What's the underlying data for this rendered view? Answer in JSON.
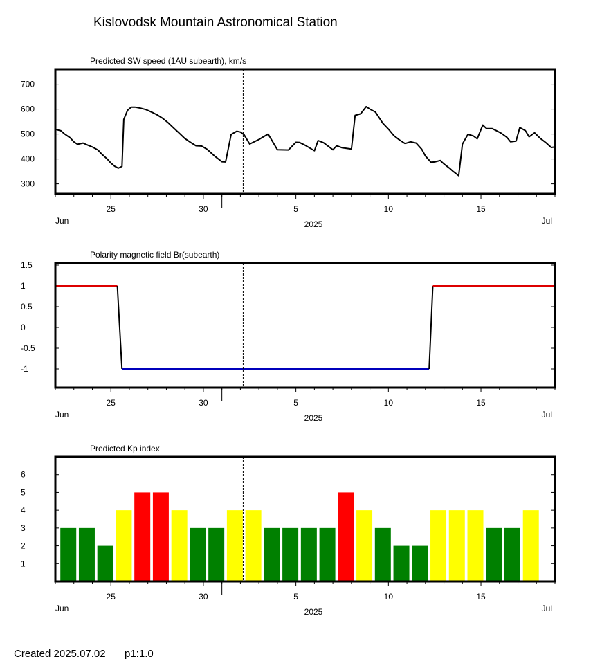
{
  "page": {
    "title": "Kislovodsk Mountain Astronomical Station",
    "footer_created": "Created  2025.07.02",
    "footer_page": "p1:1.0"
  },
  "chart_data": [
    {
      "type": "line",
      "title": "Predicted SW speed (1AU subearth), km/s",
      "x_unit": "day of 2025 (Jun 22 = 22, Jul 1 = 31)",
      "xlim": [
        22,
        49
      ],
      "ylim": [
        260,
        760
      ],
      "yticks": [
        300,
        400,
        500,
        600,
        700
      ],
      "ytick_labels": [
        "300",
        "400",
        "500",
        "600",
        "700"
      ],
      "xticks": [
        25,
        30,
        35,
        40,
        45
      ],
      "xtick_labels": [
        "25",
        "30",
        "5",
        "10",
        "15"
      ],
      "month_labels": [
        "Jun",
        "Jul"
      ],
      "year_label": "2025",
      "current_time": 32.15,
      "month_boundary": 31,
      "color": "#000000",
      "series": [
        {
          "x": [
            22.0,
            22.3,
            22.5,
            22.8,
            23.0,
            23.2,
            23.5,
            23.7,
            24.0,
            24.3,
            24.5,
            24.8,
            25.0,
            25.2,
            25.4,
            25.6,
            25.7,
            25.9,
            26.1,
            26.3,
            26.6,
            26.9,
            27.2,
            27.5,
            27.8,
            28.1,
            28.4,
            28.7,
            29.0,
            29.3,
            29.6,
            29.9,
            30.2,
            30.6,
            31.0,
            31.2,
            31.5,
            31.8,
            32.0,
            32.2,
            32.5,
            33.0,
            33.5,
            34.0,
            34.6,
            35.0,
            35.2,
            35.5,
            36.0,
            36.2,
            36.5,
            37.0,
            37.2,
            37.5,
            38.0,
            38.2,
            38.5,
            38.8,
            39.0,
            39.3,
            39.7,
            40.0,
            40.3,
            40.6,
            40.9,
            41.2,
            41.5,
            41.8,
            42.0,
            42.3,
            42.5,
            42.8,
            43.0,
            43.3,
            43.5,
            43.8,
            44.0,
            44.3,
            44.6,
            44.8,
            45.1,
            45.3,
            45.6,
            45.9,
            46.1,
            46.4,
            46.6,
            46.9,
            47.1,
            47.4,
            47.6,
            47.9,
            48.2,
            48.5,
            48.8,
            49.0
          ],
          "y": [
            519,
            513,
            500,
            485,
            469,
            459,
            464,
            457,
            448,
            436,
            420,
            400,
            384,
            371,
            363,
            370,
            559,
            595,
            608,
            608,
            604,
            598,
            588,
            577,
            563,
            545,
            524,
            503,
            482,
            467,
            453,
            452,
            439,
            412,
            389,
            388,
            498,
            511,
            508,
            497,
            460,
            478,
            500,
            437,
            436,
            467,
            466,
            455,
            433,
            474,
            465,
            437,
            453,
            445,
            440,
            575,
            581,
            610,
            600,
            588,
            543,
            520,
            493,
            476,
            462,
            469,
            464,
            439,
            412,
            387,
            388,
            394,
            380,
            363,
            350,
            333,
            460,
            499,
            492,
            481,
            536,
            522,
            522,
            511,
            503,
            487,
            469,
            472,
            526,
            514,
            489,
            505,
            483,
            466,
            446,
            448
          ]
        }
      ]
    },
    {
      "type": "line",
      "title": "Polarity magnetic field  Br(subearth)",
      "x_unit": "day of 2025 (Jun 22 = 22, Jul 1 = 31)",
      "xlim": [
        22,
        49
      ],
      "ylim": [
        -1.45,
        1.55
      ],
      "yticks": [
        -1,
        -0.5,
        0,
        0.5,
        1,
        1.5
      ],
      "ytick_labels": [
        "-1",
        "-0.5",
        "0",
        "0.5",
        "1",
        "1.5"
      ],
      "xticks": [
        25,
        30,
        35,
        40,
        45
      ],
      "xtick_labels": [
        "25",
        "30",
        "5",
        "10",
        "15"
      ],
      "month_labels": [
        "Jun",
        "Jul"
      ],
      "year_label": "2025",
      "current_time": 32.15,
      "month_boundary": 31,
      "positive_color": "#dd0000",
      "negative_color": "#0000bb",
      "transition_color": "#000000",
      "series": [
        {
          "x": [
            22.0,
            25.35,
            25.6,
            42.2,
            42.4,
            49.0
          ],
          "y": [
            1,
            1,
            -1,
            -1,
            1,
            1
          ]
        }
      ]
    },
    {
      "type": "bar",
      "title": "Predicted Kp index",
      "x_unit": "day of 2025 (Jun 22 = 22, Jul 1 = 31)",
      "xlim": [
        22,
        49
      ],
      "ylim": [
        0,
        7
      ],
      "yticks": [
        1,
        2,
        3,
        4,
        5,
        6
      ],
      "ytick_labels": [
        "1",
        "2",
        "3",
        "4",
        "5",
        "6"
      ],
      "xticks": [
        25,
        30,
        35,
        40,
        45
      ],
      "xtick_labels": [
        "25",
        "30",
        "5",
        "10",
        "15"
      ],
      "month_labels": [
        "Jun",
        "Jul"
      ],
      "year_label": "2025",
      "current_time": 32.15,
      "month_boundary": 31,
      "colors": {
        "3": "#008000",
        "2": "#008000",
        "4": "#ffff00",
        "5": "#ff0000"
      },
      "x": [
        22.7,
        23.7,
        24.7,
        25.7,
        26.7,
        27.7,
        28.7,
        29.7,
        30.7,
        31.7,
        32.7,
        33.7,
        34.7,
        35.7,
        36.7,
        37.7,
        38.7,
        39.7,
        40.7,
        41.7,
        42.7,
        43.7,
        44.7,
        45.7,
        46.7,
        47.7
      ],
      "values": [
        3,
        3,
        2,
        4,
        5,
        5,
        4,
        3,
        3,
        4,
        4,
        3,
        3,
        3,
        3,
        5,
        4,
        3,
        2,
        2,
        4,
        4,
        4,
        3,
        3,
        4
      ]
    }
  ]
}
